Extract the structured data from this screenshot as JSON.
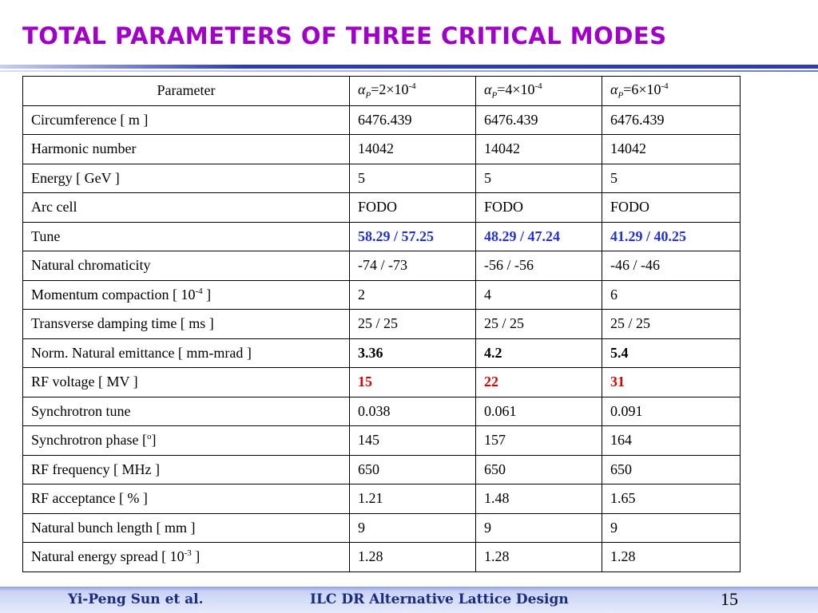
{
  "title": "Total Parameters of Three Critical Modes",
  "table": {
    "header": [
      "Parameter",
      {
        "symbol": "α",
        "sub": "P",
        "text": "=2×10",
        "sup": "-4"
      },
      {
        "symbol": "α",
        "sub": "P",
        "text": "=4×10",
        "sup": "-4"
      },
      {
        "symbol": "α",
        "sub": "P",
        "text": "=6×10",
        "sup": "-4"
      }
    ],
    "rows": [
      [
        "Circumference [ m ]",
        "6476.439",
        "6476.439",
        "6476.439"
      ],
      [
        "Harmonic number",
        "14042",
        "14042",
        "14042"
      ],
      [
        "Energy [ GeV ]",
        "5",
        "5",
        "5"
      ],
      [
        "Arc cell",
        "FODO",
        "FODO",
        "FODO"
      ],
      [
        "Tune",
        "58.29 / 57.25",
        "48.29 / 47.24",
        "41.29 / 40.25"
      ],
      [
        "Natural chromaticity",
        "-74 / -73",
        "-56 / -56",
        "-46 / -46"
      ],
      [
        {
          "text": "Momentum compaction [ 10",
          "sup": "-4",
          "tail": " ]"
        },
        "2",
        "4",
        "6"
      ],
      [
        "Transverse damping time [ ms ]",
        "25 / 25",
        "25 / 25",
        "25 / 25"
      ],
      [
        "Norm. Natural emittance [ mm-mrad ]",
        "3.36",
        "4.2",
        "5.4"
      ],
      [
        "RF voltage [ MV ]",
        "15",
        "22",
        "31"
      ],
      [
        "Synchrotron tune",
        "0.038",
        "0.061",
        "0.091"
      ],
      [
        {
          "text": "Synchrotron phase [",
          "sup": "o",
          "tail": "]"
        },
        "145",
        "157",
        "164"
      ],
      [
        "RF frequency [ MHz ]",
        "650",
        "650",
        "650"
      ],
      [
        "RF acceptance [ % ]",
        "1.21",
        "1.48",
        "1.65"
      ],
      [
        "Natural bunch length [ mm ]",
        "9",
        "9",
        "9"
      ],
      [
        {
          "text": "Natural energy spread [ 10",
          "sup": "-3",
          "tail": " ]"
        },
        "1.28",
        "1.28",
        "1.28"
      ]
    ]
  },
  "footer": {
    "author": "Yi-Peng Sun et al.",
    "center": "ILC DR Alternative Lattice Design",
    "page": "15"
  }
}
